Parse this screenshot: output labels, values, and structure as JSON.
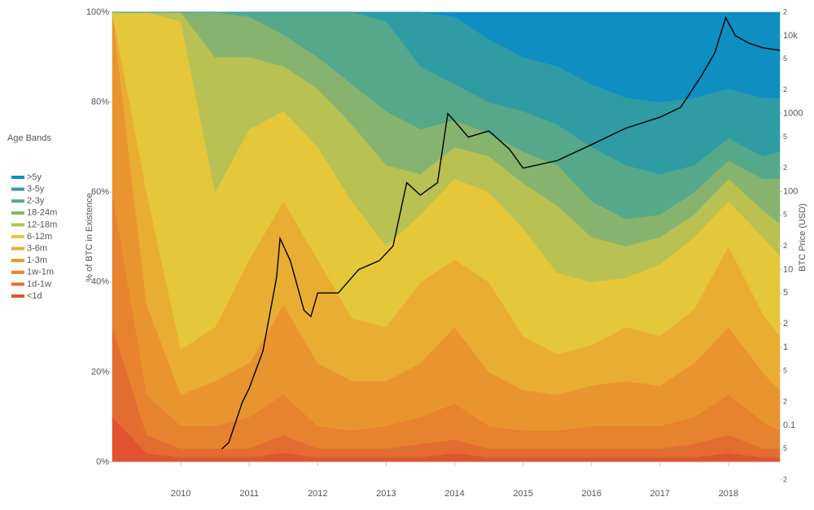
{
  "chart_data": {
    "type": "stacked_area",
    "legend_title": "Age Bands",
    "legend": "left",
    "ylabel": "% of BTC in Existence",
    "y2label": "BTC Price (USD)",
    "x": [
      2009.0,
      2009.5,
      2010.0,
      2010.5,
      2011.0,
      2011.5,
      2012.0,
      2012.5,
      2013.0,
      2013.5,
      2014.0,
      2014.5,
      2015.0,
      2015.5,
      2016.0,
      2016.5,
      2017.0,
      2017.5,
      2018.0,
      2018.5,
      2018.75
    ],
    "xlim": [
      2009,
      2018.75
    ],
    "xticks": [
      2010,
      2011,
      2012,
      2013,
      2014,
      2015,
      2016,
      2017,
      2018
    ],
    "ylim": [
      0,
      100
    ],
    "yticks": [
      {
        "value": 0,
        "label": "0%"
      },
      {
        "value": 20,
        "label": "20%"
      },
      {
        "value": 40,
        "label": "40%"
      },
      {
        "value": 60,
        "label": "60%"
      },
      {
        "value": 80,
        "label": "80%"
      },
      {
        "value": 100,
        "label": "100%"
      }
    ],
    "y2lim": [
      0.02,
      20000
    ],
    "y2scale": "log",
    "y2ticks": [
      {
        "value": 20000,
        "label": "2"
      },
      {
        "value": 10000,
        "label": "10k"
      },
      {
        "value": 5000,
        "label": "5"
      },
      {
        "value": 2000,
        "label": "2"
      },
      1000,
      {
        "value": 500,
        "label": "5"
      },
      {
        "value": 200,
        "label": "2"
      },
      100,
      {
        "value": 50,
        "label": "5"
      },
      {
        "value": 20,
        "label": "2"
      },
      10,
      5,
      2,
      1,
      {
        "value": 0.5,
        "label": "5"
      },
      {
        "value": 0.2,
        "label": "2"
      },
      0.1,
      {
        "value": 0.05,
        "label": "5"
      },
      {
        "value": 0.02,
        "label": "2"
      }
    ],
    "series": [
      {
        "name": "<1d",
        "color": "#e0532e",
        "values": [
          10,
          2,
          1,
          1,
          1,
          2,
          1,
          1,
          1,
          1,
          2,
          1,
          1,
          1,
          1,
          1,
          1,
          1,
          2,
          1,
          1
        ]
      },
      {
        "name": "1d-1w",
        "color": "#e36c30",
        "values": [
          20,
          4,
          2,
          2,
          2,
          4,
          2,
          2,
          2,
          3,
          3,
          2,
          2,
          2,
          2,
          2,
          2,
          3,
          4,
          2,
          2
        ]
      },
      {
        "name": "1w-1m",
        "color": "#e7822f",
        "values": [
          30,
          9,
          5,
          5,
          7,
          9,
          5,
          4,
          5,
          6,
          8,
          5,
          4,
          4,
          5,
          5,
          5,
          6,
          9,
          6,
          4
        ]
      },
      {
        "name": "1-3m",
        "color": "#e9952f",
        "values": [
          40,
          20,
          7,
          10,
          12,
          20,
          14,
          11,
          10,
          12,
          17,
          12,
          9,
          8,
          9,
          10,
          9,
          12,
          15,
          11,
          9
        ]
      },
      {
        "name": "3-6m",
        "color": "#e9ad33",
        "values": [
          0,
          25,
          10,
          12,
          23,
          23,
          23,
          14,
          12,
          18,
          15,
          20,
          12,
          9,
          9,
          12,
          11,
          12,
          18,
          13,
          12
        ]
      },
      {
        "name": "6-12m",
        "color": "#e4c83a",
        "values": [
          0,
          40,
          73,
          30,
          29,
          20,
          25,
          26,
          18,
          15,
          18,
          20,
          24,
          18,
          14,
          11,
          16,
          16,
          10,
          17,
          18
        ]
      },
      {
        "name": "12-18m",
        "color": "#b8c152",
        "values": [
          0,
          0,
          2,
          30,
          16,
          10,
          13,
          17,
          18,
          9,
          7,
          8,
          10,
          15,
          10,
          7,
          6,
          5,
          5,
          6,
          7
        ]
      },
      {
        "name": "18-24m",
        "color": "#86b46e",
        "values": [
          0,
          0,
          0,
          10,
          9,
          7,
          7,
          9,
          12,
          10,
          6,
          5,
          7,
          9,
          8,
          6,
          5,
          5,
          4,
          7,
          10
        ]
      },
      {
        "name": "2-3y",
        "color": "#55a88a",
        "values": [
          0,
          0,
          0,
          0,
          1,
          5,
          10,
          16,
          20,
          14,
          8,
          7,
          9,
          9,
          12,
          12,
          9,
          6,
          5,
          5,
          6
        ]
      },
      {
        "name": "3-5y",
        "color": "#2f9ca3",
        "values": [
          0,
          0,
          0,
          0,
          0,
          0,
          0,
          0,
          2,
          12,
          15,
          14,
          12,
          13,
          14,
          15,
          16,
          15,
          11,
          13,
          12
        ]
      },
      {
        "name": ">5y",
        "color": "#0f8ec2",
        "values": [
          0,
          0,
          0,
          0,
          0,
          0,
          0,
          0,
          0,
          0,
          1,
          6,
          10,
          12,
          16,
          19,
          20,
          19,
          17,
          19,
          19
        ]
      }
    ],
    "price_line": {
      "color": "#000000",
      "axis": "y2",
      "x": [
        2010.6,
        2010.7,
        2010.9,
        2011.0,
        2011.2,
        2011.4,
        2011.45,
        2011.6,
        2011.8,
        2011.9,
        2012.0,
        2012.3,
        2012.6,
        2012.9,
        2013.1,
        2013.3,
        2013.5,
        2013.75,
        2013.9,
        2014.0,
        2014.2,
        2014.5,
        2014.8,
        2015.0,
        2015.5,
        2016.0,
        2016.5,
        2017.0,
        2017.3,
        2017.6,
        2017.8,
        2017.96,
        2018.1,
        2018.3,
        2018.5,
        2018.75
      ],
      "values": [
        0.05,
        0.06,
        0.2,
        0.3,
        0.9,
        8,
        25,
        13,
        3,
        2.5,
        5,
        5,
        10,
        13,
        20,
        130,
        90,
        130,
        1000,
        800,
        500,
        600,
        350,
        200,
        250,
        400,
        650,
        900,
        1200,
        3000,
        6000,
        17000,
        10000,
        8000,
        7000,
        6500
      ]
    }
  }
}
